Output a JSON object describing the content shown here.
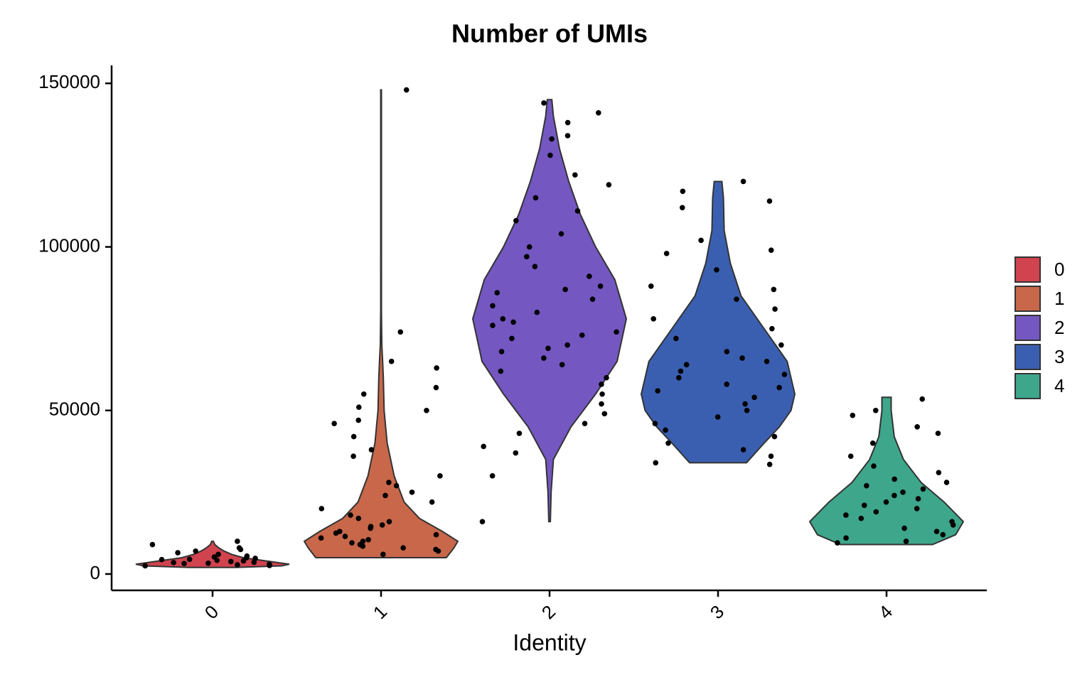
{
  "chart_data": {
    "type": "violin",
    "title": "Number of UMIs",
    "x_label": "Identity",
    "categories": [
      "0",
      "1",
      "2",
      "3",
      "4"
    ],
    "ylim": [
      -5000,
      155500
    ],
    "yticks": [
      0,
      50000,
      100000,
      150000
    ],
    "series": [
      {
        "name": "0",
        "color": "#d0434f",
        "violin_y": [
          2000,
          2500,
          3000,
          4000,
          5000,
          6000,
          7000,
          8000,
          9000,
          10000
        ],
        "violin_width": [
          0.3,
          0.9,
          1.0,
          0.7,
          0.4,
          0.25,
          0.15,
          0.08,
          0.03,
          0.01
        ],
        "points": [
          2500,
          3000,
          3200,
          3500,
          4000,
          4200,
          4500,
          5000,
          5500,
          6000,
          2800,
          3800,
          4800,
          6500,
          7000,
          7500,
          8000,
          9000,
          10000,
          3300,
          2600,
          3600,
          4400,
          5200,
          2900
        ]
      },
      {
        "name": "1",
        "color": "#c8674a",
        "violin_y": [
          5000,
          8000,
          10000,
          13000,
          17000,
          22000,
          30000,
          40000,
          50000,
          60000,
          65000,
          70000,
          80000,
          100000,
          148000
        ],
        "violin_width": [
          0.85,
          0.95,
          1.0,
          0.8,
          0.5,
          0.3,
          0.17,
          0.08,
          0.04,
          0.03,
          0.02,
          0.01,
          0.005,
          0.005,
          0.005
        ],
        "points": [
          148000,
          74000,
          65000,
          63000,
          57000,
          55000,
          51000,
          50000,
          47000,
          46000,
          42000,
          38000,
          36000,
          30000,
          28000,
          25000,
          22000,
          20000,
          18000,
          16000,
          15000,
          14000,
          13000,
          12000,
          11000,
          10000,
          9000,
          8000,
          7000,
          6000,
          12500,
          10500,
          9500,
          8500,
          14500,
          17000,
          24000,
          27000,
          11500,
          7500
        ]
      },
      {
        "name": "2",
        "color": "#7457c1",
        "violin_y": [
          16000,
          25000,
          35000,
          45000,
          55000,
          65000,
          78000,
          90000,
          100000,
          110000,
          120000,
          130000,
          140000,
          145000
        ],
        "violin_width": [
          0.01,
          0.02,
          0.05,
          0.28,
          0.6,
          0.88,
          1.0,
          0.85,
          0.6,
          0.4,
          0.25,
          0.13,
          0.05,
          0.03
        ],
        "points": [
          144000,
          141000,
          138000,
          134000,
          133000,
          128000,
          122000,
          119000,
          115000,
          111000,
          108000,
          104000,
          100000,
          97000,
          94000,
          91000,
          88000,
          86000,
          84000,
          82000,
          80000,
          78000,
          76000,
          74000,
          72000,
          70000,
          68000,
          66000,
          64000,
          62000,
          60000,
          58000,
          55000,
          52000,
          49000,
          46000,
          43000,
          39000,
          37000,
          30000,
          16000,
          87000,
          77000,
          73000,
          69000
        ]
      },
      {
        "name": "3",
        "color": "#3b5fb0",
        "violin_y": [
          34000,
          40000,
          45000,
          50000,
          55000,
          65000,
          75000,
          85000,
          95000,
          105000,
          115000,
          120000
        ],
        "violin_width": [
          0.37,
          0.6,
          0.8,
          0.95,
          1.0,
          0.9,
          0.6,
          0.3,
          0.16,
          0.08,
          0.07,
          0.05
        ],
        "points": [
          120000,
          117000,
          114000,
          112000,
          102000,
          99000,
          98000,
          93000,
          88000,
          87000,
          84000,
          81000,
          78000,
          75000,
          72000,
          70000,
          68000,
          66000,
          64000,
          62000,
          60000,
          58000,
          56000,
          54000,
          52000,
          50000,
          48000,
          46000,
          44000,
          42000,
          40000,
          38000,
          36000,
          34000,
          33500,
          65000,
          61000,
          57000
        ]
      },
      {
        "name": "4",
        "color": "#3ea68b",
        "violin_y": [
          9000,
          12000,
          16000,
          22000,
          28000,
          35000,
          42000,
          50000,
          54000
        ],
        "violin_width": [
          0.6,
          0.9,
          1.0,
          0.75,
          0.45,
          0.22,
          0.1,
          0.06,
          0.06
        ],
        "points": [
          53500,
          50000,
          48500,
          45000,
          43000,
          40000,
          36000,
          33000,
          31000,
          29000,
          27000,
          25000,
          23000,
          21000,
          20000,
          19000,
          18000,
          17000,
          16000,
          15000,
          14000,
          13000,
          12000,
          11000,
          10000,
          9500,
          22000,
          24000,
          26000,
          28000
        ]
      }
    ]
  }
}
